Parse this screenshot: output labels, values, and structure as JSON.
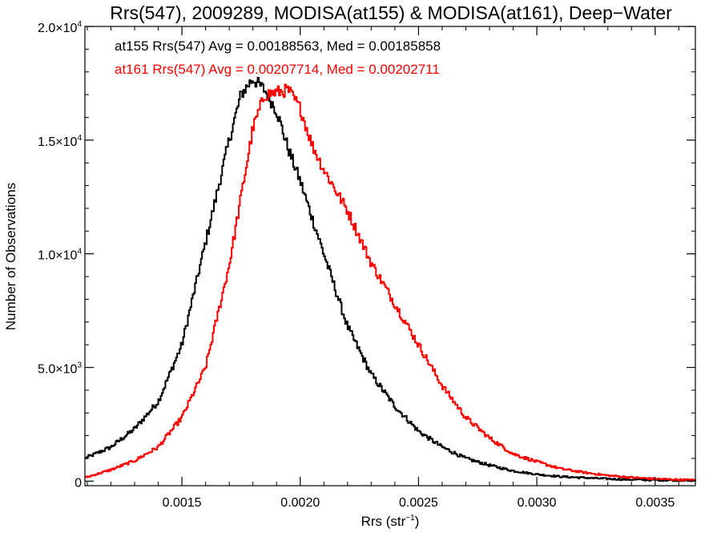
{
  "chart_data": {
    "type": "line",
    "title": "Rrs(547), 2009289, MODISA(at155) & MODISA(at161), Deep−Water",
    "xlabel": "Rrs (str",
    "xlabel_exp": "−1",
    "xlabel_tail": ")",
    "ylabel": "Number of Observations",
    "xlim": [
      0.00109,
      0.00367
    ],
    "ylim": [
      -200,
      20000
    ],
    "x_ticks": [
      {
        "value": 0.0015,
        "label": "0.0015"
      },
      {
        "value": 0.002,
        "label": "0.0020"
      },
      {
        "value": 0.0025,
        "label": "0.0025"
      },
      {
        "value": 0.003,
        "label": "0.0030"
      },
      {
        "value": 0.0035,
        "label": "0.0035"
      }
    ],
    "y_ticks": [
      {
        "value": 0,
        "mantissa": "0",
        "exp": ""
      },
      {
        "value": 5000,
        "mantissa": "5.0×10",
        "exp": "3"
      },
      {
        "value": 10000,
        "mantissa": "1.0×10",
        "exp": "4"
      },
      {
        "value": 15000,
        "mantissa": "1.5×10",
        "exp": "4"
      },
      {
        "value": 20000,
        "mantissa": "2.0×10",
        "exp": "4"
      }
    ],
    "grid": false,
    "annotations": [
      {
        "text": "at155 Rrs(547) Avg = 0.00188563, Med = 0.00185858",
        "color": "#000000"
      },
      {
        "text": "at161 Rrs(547) Avg = 0.00207714, Med = 0.00202711",
        "color": "#ff0000"
      }
    ],
    "series": [
      {
        "color": "#000000",
        "x": [
          0.00109,
          0.0012,
          0.0013,
          0.0014,
          0.0015,
          0.0016,
          0.0017,
          0.00175,
          0.0018,
          0.00185,
          0.0019,
          0.00195,
          0.002,
          0.00205,
          0.0021,
          0.0022,
          0.0023,
          0.0024,
          0.0025,
          0.0026,
          0.0027,
          0.0028,
          0.0029,
          0.003,
          0.0031,
          0.0032,
          0.0033,
          0.0034,
          0.0035,
          0.00367
        ],
        "values": [
          1000,
          1500,
          2300,
          3500,
          6000,
          10500,
          15000,
          17000,
          17700,
          17200,
          16300,
          14600,
          13200,
          11600,
          10000,
          6800,
          4700,
          3300,
          2200,
          1500,
          1000,
          700,
          450,
          300,
          200,
          150,
          100,
          70,
          50,
          30
        ]
      },
      {
        "color": "#ff0000",
        "x": [
          0.00109,
          0.0012,
          0.0013,
          0.0014,
          0.0015,
          0.0016,
          0.0017,
          0.00175,
          0.0018,
          0.00185,
          0.0019,
          0.00195,
          0.002,
          0.00205,
          0.0021,
          0.0022,
          0.0023,
          0.0024,
          0.0025,
          0.0026,
          0.0027,
          0.0028,
          0.0029,
          0.003,
          0.0031,
          0.0032,
          0.0033,
          0.0034,
          0.0035,
          0.00367
        ],
        "values": [
          150,
          500,
          900,
          1500,
          2800,
          5000,
          9500,
          12500,
          15500,
          17000,
          17100,
          17200,
          16400,
          14800,
          13700,
          11900,
          9600,
          7800,
          6000,
          4200,
          2800,
          1900,
          1200,
          850,
          550,
          380,
          250,
          160,
          100,
          40
        ]
      }
    ]
  }
}
